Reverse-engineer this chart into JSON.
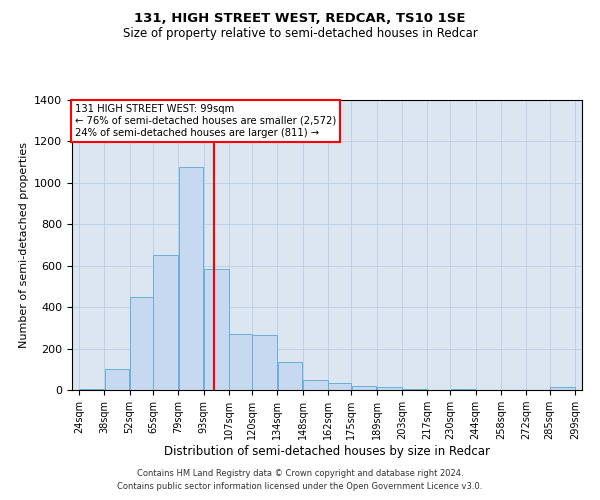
{
  "title1": "131, HIGH STREET WEST, REDCAR, TS10 1SE",
  "title2": "Size of property relative to semi-detached houses in Redcar",
  "xlabel": "Distribution of semi-detached houses by size in Redcar",
  "ylabel": "Number of semi-detached properties",
  "footnote1": "Contains HM Land Registry data © Crown copyright and database right 2024.",
  "footnote2": "Contains public sector information licensed under the Open Government Licence v3.0.",
  "annotation_line1": "131 HIGH STREET WEST: 99sqm",
  "annotation_line2": "← 76% of semi-detached houses are smaller (2,572)",
  "annotation_line3": "24% of semi-detached houses are larger (811) →",
  "property_sqm": 99,
  "bar_left_edges": [
    24,
    38,
    52,
    65,
    79,
    93,
    107,
    120,
    134,
    148,
    162,
    175,
    189,
    203,
    217,
    230,
    244,
    258,
    272,
    285
  ],
  "bar_widths": [
    14,
    14,
    13,
    14,
    14,
    14,
    13,
    14,
    14,
    14,
    13,
    14,
    14,
    14,
    13,
    14,
    14,
    14,
    13,
    14
  ],
  "bar_heights": [
    5,
    100,
    450,
    650,
    1075,
    585,
    270,
    265,
    135,
    50,
    35,
    20,
    15,
    5,
    0,
    5,
    0,
    0,
    0,
    15
  ],
  "bar_color": "#c6d9f1",
  "bar_edge_color": "#6baed6",
  "grid_color": "#b8cce4",
  "background_color": "#dce6f1",
  "annotation_box_color": "white",
  "annotation_box_edge": "red",
  "red_line_x": 99,
  "ylim": [
    0,
    1400
  ],
  "yticks": [
    0,
    200,
    400,
    600,
    800,
    1000,
    1200,
    1400
  ],
  "xlim": [
    20,
    303
  ],
  "xtick_labels": [
    "24sqm",
    "38sqm",
    "52sqm",
    "65sqm",
    "79sqm",
    "93sqm",
    "107sqm",
    "120sqm",
    "134sqm",
    "148sqm",
    "162sqm",
    "175sqm",
    "189sqm",
    "203sqm",
    "217sqm",
    "230sqm",
    "244sqm",
    "258sqm",
    "272sqm",
    "285sqm",
    "299sqm"
  ],
  "xtick_positions": [
    24,
    38,
    52,
    65,
    79,
    93,
    107,
    120,
    134,
    148,
    162,
    175,
    189,
    203,
    217,
    230,
    244,
    258,
    272,
    285,
    299
  ]
}
